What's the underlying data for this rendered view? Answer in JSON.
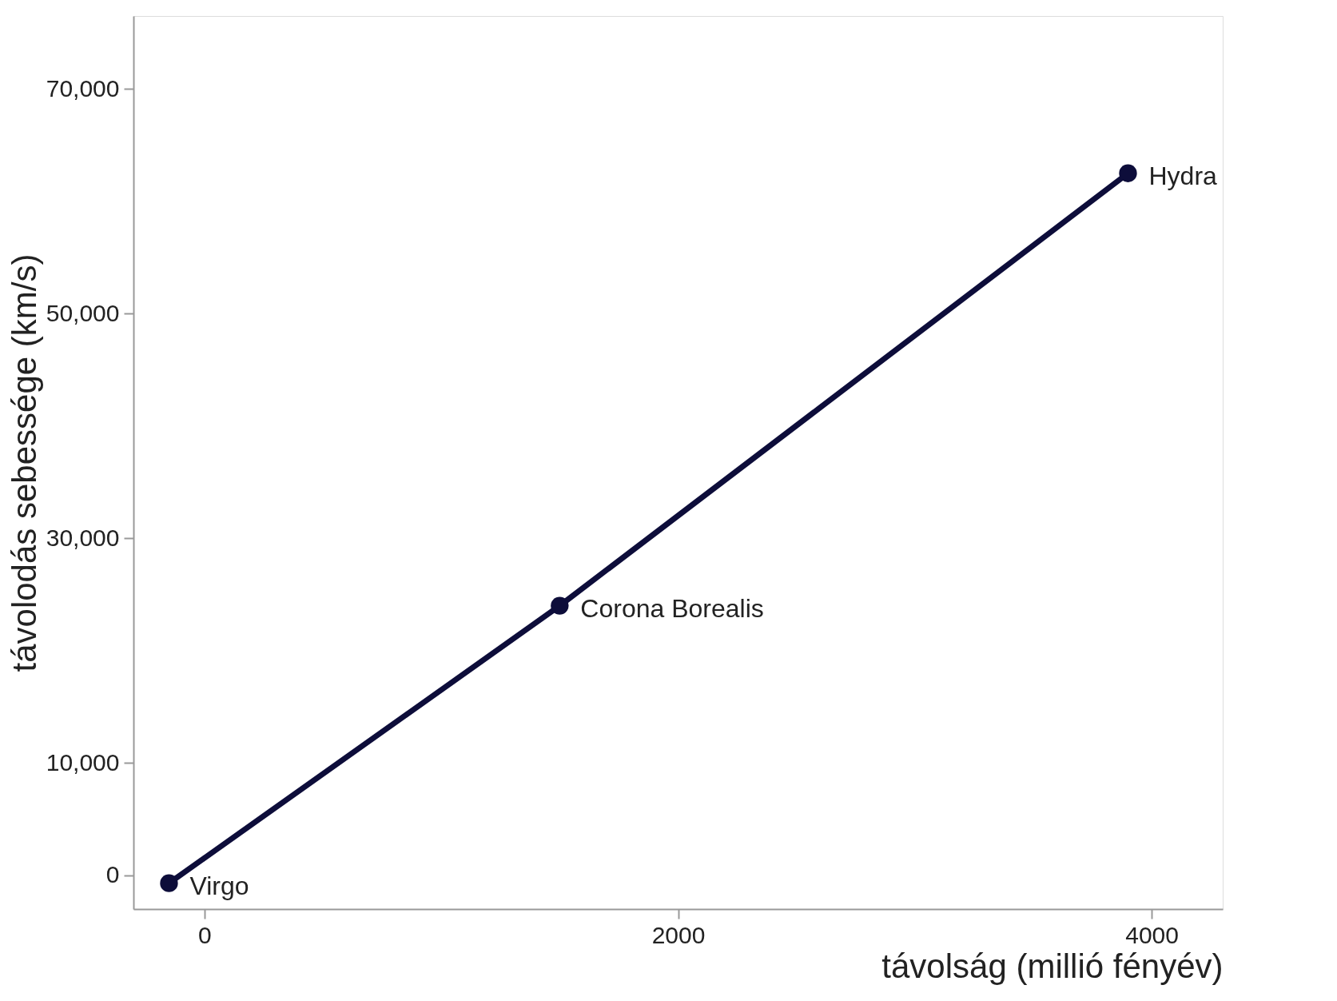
{
  "chart_data": {
    "type": "line",
    "xlabel": "távolság (millió fényév)",
    "ylabel": "távolodás sebessége (km/s)",
    "x": [
      -150,
      1500,
      3900
    ],
    "series": [
      {
        "color": "#0d0d3a",
        "values": [
          -700,
          24000,
          62500
        ]
      }
    ],
    "marker": "circle",
    "line_style": "solid",
    "grid": false,
    "xlim": [
      -300,
      4300
    ],
    "ylim": [
      -3000,
      76500
    ],
    "xticks": [
      0,
      2000,
      4000
    ],
    "yticks": [
      0,
      {
        "value": 10000,
        "label": "10,000"
      },
      {
        "value": 30000,
        "label": "30,000"
      },
      {
        "value": 50000,
        "label": "50,000"
      },
      {
        "value": 70000,
        "label": "70,000"
      }
    ],
    "annotations": [
      {
        "text": "Virgo",
        "x": -150,
        "y": -700
      },
      {
        "text": "Corona Borealis",
        "x": 1500,
        "y": 24000
      },
      {
        "text": "Hydra",
        "x": 3900,
        "y": 62500
      }
    ]
  }
}
